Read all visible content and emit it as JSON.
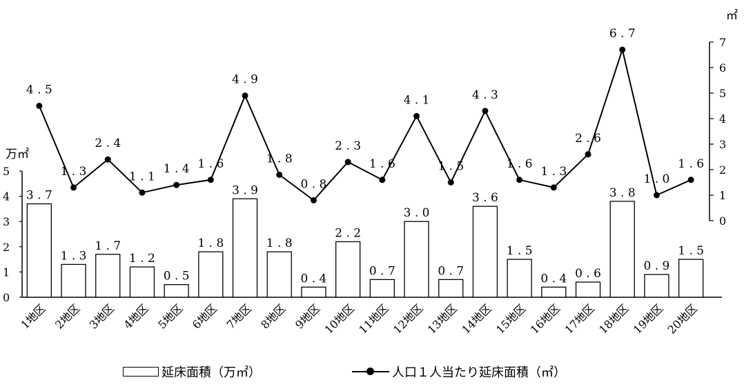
{
  "chart_data": {
    "type": "bar+line",
    "categories": [
      "1地区",
      "2地区",
      "3地区",
      "4地区",
      "5地区",
      "6地区",
      "7地区",
      "8地区",
      "9地区",
      "10地区",
      "11地区",
      "12地区",
      "13地区",
      "14地区",
      "15地区",
      "16地区",
      "17地区",
      "18地区",
      "19地区",
      "20地区"
    ],
    "series": [
      {
        "name": "延床面積（万㎡）",
        "type": "bar",
        "axis": "left",
        "values": [
          3.7,
          1.3,
          1.7,
          1.2,
          0.5,
          1.8,
          3.9,
          1.8,
          0.4,
          2.2,
          0.7,
          3.0,
          0.7,
          3.6,
          1.5,
          0.4,
          0.6,
          3.8,
          0.9,
          1.5
        ],
        "labels": [
          "3.7",
          "1.3",
          "1.7",
          "1.2",
          "0.5",
          "1.8",
          "3.9",
          "1.8",
          "0.4",
          "2.2",
          "0.7",
          "3.0",
          "0.7",
          "3.6",
          "1.5",
          "0.4",
          "0.6",
          "3.8",
          "0.9",
          "1.5"
        ]
      },
      {
        "name": "人口１人当たり延床面積（㎡）",
        "type": "line",
        "axis": "right",
        "values": [
          4.5,
          1.3,
          2.4,
          1.1,
          1.4,
          1.6,
          4.9,
          1.8,
          0.8,
          2.3,
          1.6,
          4.1,
          1.5,
          4.3,
          1.6,
          1.3,
          2.6,
          6.7,
          1.0,
          1.6
        ],
        "labels": [
          "4.5",
          "1.3",
          "2.4",
          "1.1",
          "1.4",
          "1.6",
          "4.9",
          "1.8",
          "0.8",
          "2.3",
          "1.6",
          "4.1",
          "1.5",
          "4.3",
          "1.6",
          "1.3",
          "2.6",
          "6.7",
          "1.0",
          "1.6"
        ]
      }
    ],
    "left_axis": {
      "unit": "万㎡",
      "ylim": [
        0,
        5
      ],
      "ticks": [
        "0",
        "1",
        "2",
        "3",
        "4",
        "5"
      ]
    },
    "right_axis": {
      "unit": "㎡",
      "ylim": [
        0,
        7
      ],
      "ticks": [
        "0",
        "1",
        "2",
        "3",
        "4",
        "5",
        "6",
        "7"
      ]
    },
    "grid": false,
    "legend_position": "bottom",
    "legend": {
      "bar_label": "延床面積（万㎡）",
      "line_label": "人口１人当たり延床面積（㎡）"
    }
  }
}
